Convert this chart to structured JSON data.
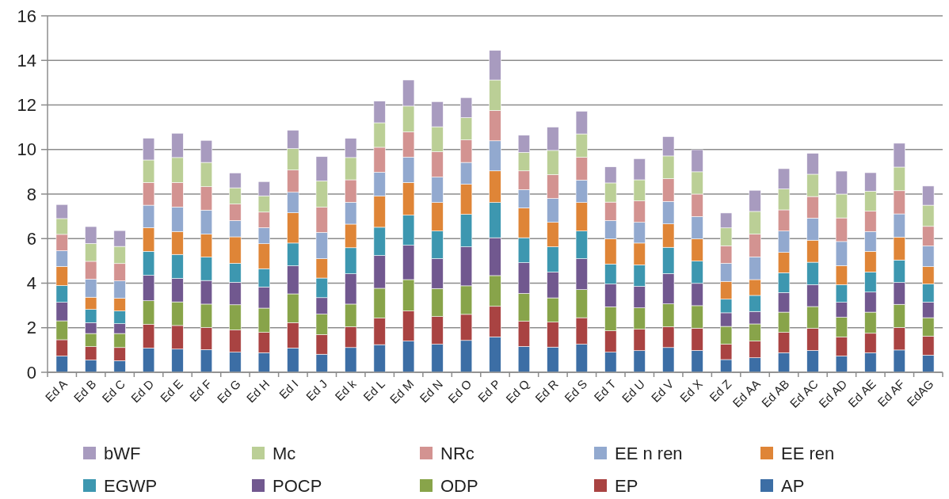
{
  "chart_data": {
    "type": "bar",
    "stacked": true,
    "categories": [
      "Ed A",
      "Ed B",
      "Ed C",
      "Ed D",
      "Ed E",
      "Ed F",
      "Ed G",
      "Ed H",
      "Ed I",
      "Ed J",
      "Ed k",
      "Ed L",
      "Ed M",
      "Ed N",
      "Ed O",
      "Ed P",
      "Ed Q",
      "Ed R",
      "Ed S",
      "Ed T",
      "Ed U",
      "Ed V",
      "Ed X",
      "Ed Z",
      "Ed AA",
      "Ed AB",
      "Ed AC",
      "Ed AD",
      "Ed AE",
      "Ed AF",
      "EdAG"
    ],
    "ylim": [
      0,
      16
    ],
    "yticks": [
      0,
      2,
      4,
      6,
      8,
      10,
      12,
      14,
      16
    ],
    "grid": "y",
    "legend": "bottom",
    "series": [
      {
        "name": "AP",
        "color": "#3c6ea5",
        "values": [
          0.73,
          0.55,
          0.52,
          1.09,
          1.04,
          1.02,
          0.9,
          0.88,
          1.09,
          0.81,
          1.11,
          1.24,
          1.4,
          1.26,
          1.43,
          1.59,
          1.16,
          1.13,
          1.26,
          0.9,
          0.97,
          1.11,
          0.98,
          0.57,
          0.65,
          0.88,
          0.98,
          0.73,
          0.88,
          1.0,
          0.77
        ]
      },
      {
        "name": "EP",
        "color": "#a94342",
        "values": [
          0.73,
          0.6,
          0.59,
          1.06,
          1.06,
          0.99,
          1.0,
          0.91,
          1.14,
          0.88,
          0.93,
          1.19,
          1.35,
          1.24,
          1.17,
          1.37,
          1.13,
          1.12,
          1.19,
          0.96,
          0.96,
          0.93,
          1.0,
          0.69,
          0.75,
          0.91,
          0.99,
          0.85,
          0.87,
          1.01,
          0.85
        ]
      },
      {
        "name": "ODP",
        "color": "#88a44a",
        "values": [
          0.85,
          0.59,
          0.63,
          1.06,
          1.06,
          1.05,
          1.13,
          1.09,
          1.29,
          0.92,
          1.02,
          1.34,
          1.41,
          1.26,
          1.28,
          1.38,
          1.25,
          1.09,
          1.26,
          1.08,
          0.96,
          1.03,
          1.01,
          0.8,
          0.77,
          0.91,
          0.98,
          0.89,
          0.95,
          1.04,
          0.83
        ]
      },
      {
        "name": "POCP",
        "color": "#71588f",
        "values": [
          0.83,
          0.49,
          0.44,
          1.14,
          1.05,
          1.06,
          1.01,
          0.95,
          1.26,
          0.74,
          1.36,
          1.47,
          1.54,
          1.34,
          1.75,
          1.7,
          1.38,
          1.16,
          1.39,
          1.02,
          0.97,
          1.36,
          1.0,
          0.61,
          0.56,
          0.88,
          0.98,
          0.67,
          0.9,
          0.98,
          0.7
        ]
      },
      {
        "name": "EGWP",
        "color": "#3d97b0",
        "values": [
          0.75,
          0.59,
          0.57,
          1.08,
          1.08,
          1.05,
          0.85,
          0.82,
          1.02,
          0.88,
          1.17,
          1.27,
          1.35,
          1.24,
          1.46,
          1.58,
          1.12,
          1.13,
          1.24,
          0.9,
          0.96,
          1.18,
          1.0,
          0.61,
          0.72,
          0.89,
          1.01,
          0.79,
          0.9,
          1.01,
          0.81
        ]
      },
      {
        "name": "EE ren",
        "color": "#df8537",
        "values": [
          0.86,
          0.55,
          0.57,
          1.06,
          1.03,
          1.03,
          1.19,
          1.12,
          1.36,
          0.87,
          1.06,
          1.4,
          1.47,
          1.28,
          1.35,
          1.42,
          1.34,
          1.1,
          1.28,
          1.13,
          0.98,
          1.05,
          1.0,
          0.8,
          0.71,
          0.91,
          0.99,
          0.86,
          0.93,
          1.03,
          0.78
        ]
      },
      {
        "name": "EE n ren",
        "color": "#92a9cf",
        "values": [
          0.71,
          0.81,
          0.78,
          1.01,
          1.1,
          1.08,
          0.73,
          0.72,
          0.92,
          1.18,
          0.98,
          1.07,
          1.14,
          1.14,
          0.98,
          1.35,
          0.82,
          1.07,
          1.01,
          0.82,
          0.93,
          1.01,
          1.0,
          0.81,
          1.02,
          0.96,
          0.99,
          1.08,
          0.89,
          1.04,
          0.93
        ]
      },
      {
        "name": "NRc",
        "color": "#d39391",
        "values": [
          0.73,
          0.8,
          0.78,
          1.02,
          1.1,
          1.05,
          0.74,
          0.7,
          1.0,
          1.13,
          1.01,
          1.12,
          1.13,
          1.14,
          1.01,
          1.36,
          0.84,
          1.07,
          1.02,
          0.83,
          0.96,
          1.02,
          1.01,
          0.79,
          1.02,
          0.95,
          0.97,
          1.06,
          0.91,
          1.04,
          0.88
        ]
      },
      {
        "name": "Mc",
        "color": "#bbcf96",
        "values": [
          0.71,
          0.8,
          0.77,
          1.01,
          1.12,
          1.09,
          0.73,
          0.73,
          0.96,
          1.18,
          1.0,
          1.1,
          1.16,
          1.12,
          1.0,
          1.37,
          0.83,
          1.09,
          1.05,
          0.86,
          0.95,
          1.02,
          1.0,
          0.8,
          1.02,
          0.94,
          1.0,
          1.07,
          0.9,
          1.06,
          0.95
        ]
      },
      {
        "name": "bWF",
        "color": "#a89bbf",
        "values": [
          0.63,
          0.76,
          0.71,
          0.98,
          1.09,
          0.99,
          0.67,
          0.64,
          0.83,
          1.09,
          0.86,
          0.97,
          1.17,
          1.13,
          0.9,
          1.33,
          0.77,
          1.05,
          1.02,
          0.72,
          0.95,
          0.87,
          0.99,
          0.67,
          0.95,
          0.91,
          0.94,
          1.03,
          0.83,
          1.07,
          0.86
        ]
      }
    ]
  }
}
